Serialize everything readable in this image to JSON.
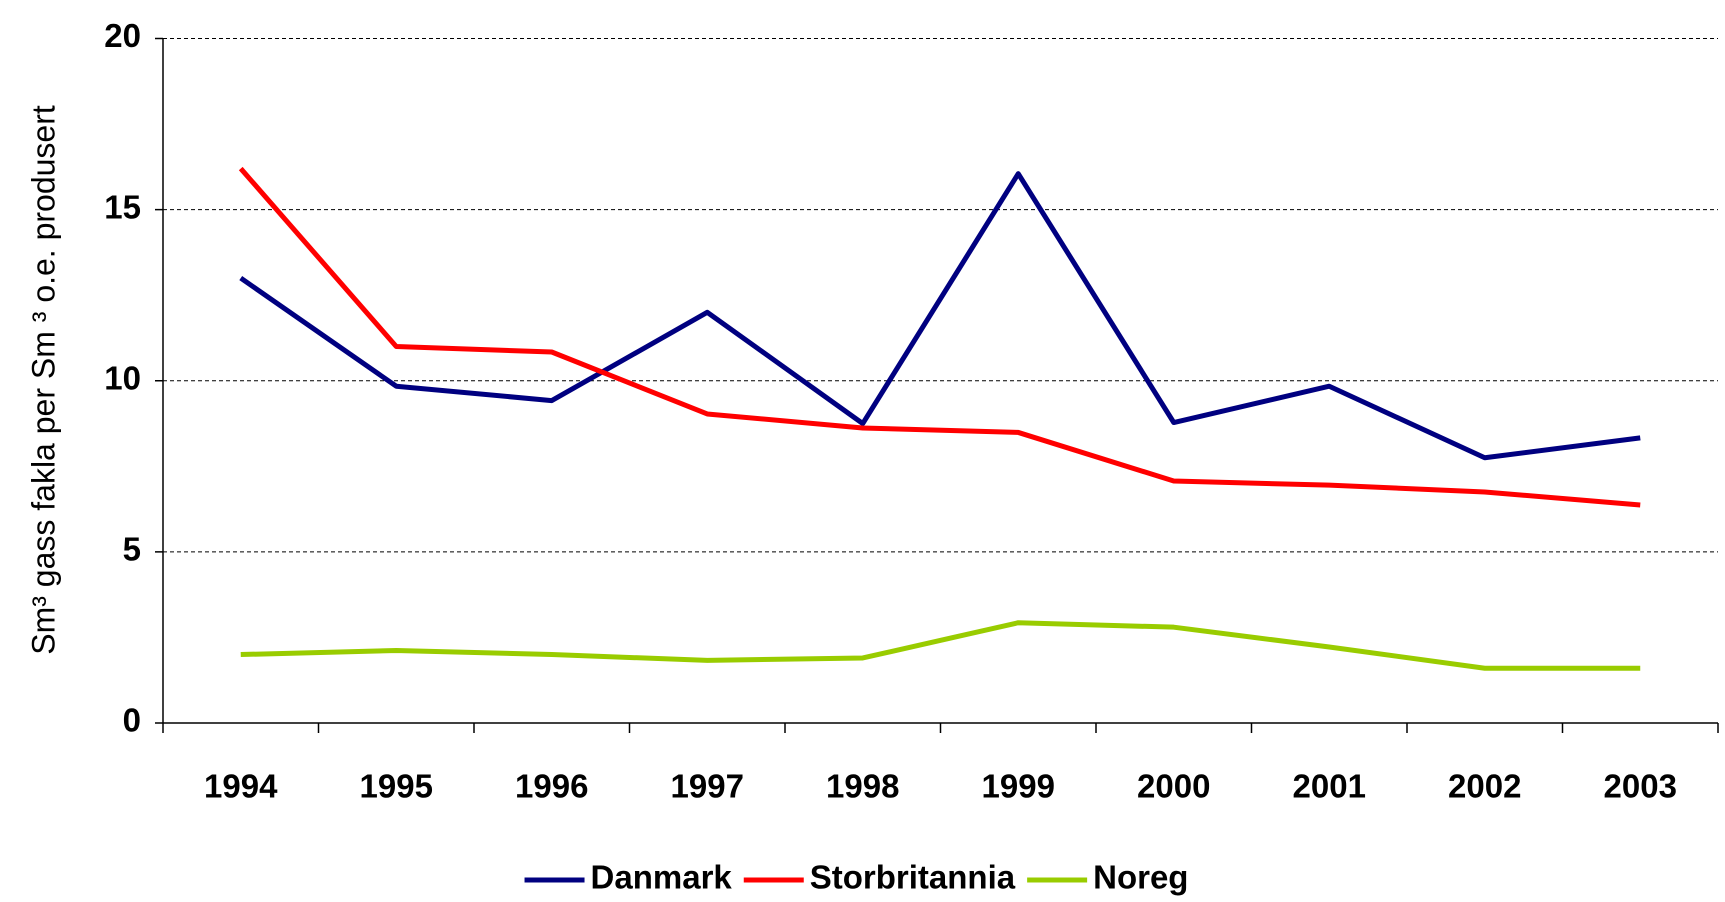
{
  "chart_data": {
    "type": "line",
    "y_label": "Sm³ gass fakla per Sm ³ o.e. produsert",
    "categories": [
      "1994",
      "1995",
      "1996",
      "1997",
      "1998",
      "1999",
      "2000",
      "2001",
      "2002",
      "2003"
    ],
    "series": [
      {
        "name": "Danmark",
        "color": "#000080",
        "values": [
          13.0,
          9.84,
          9.42,
          12.0,
          8.75,
          16.05,
          8.78,
          9.84,
          7.75,
          8.33
        ]
      },
      {
        "name": "Storbritannia",
        "color": "#ff0000",
        "values": [
          16.2,
          11.0,
          10.84,
          9.03,
          8.62,
          8.49,
          7.07,
          6.95,
          6.75,
          6.37
        ]
      },
      {
        "name": "Noreg",
        "color": "#99cc00",
        "values": [
          2.0,
          2.12,
          2.0,
          1.83,
          1.9,
          2.93,
          2.8,
          2.22,
          1.6,
          1.6
        ]
      }
    ],
    "ylim": [
      0,
      20
    ],
    "yticks": [
      0,
      5,
      10,
      15,
      20
    ],
    "grid": true,
    "legend": "bottom"
  }
}
